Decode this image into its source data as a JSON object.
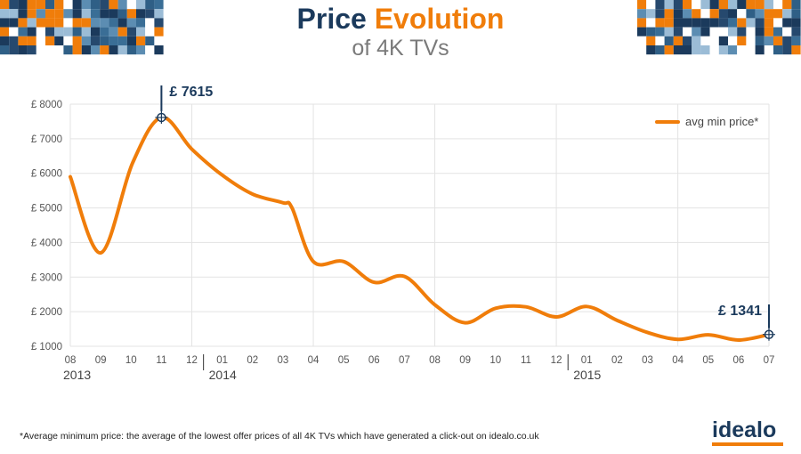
{
  "title": {
    "part1": "Price",
    "part2": "Evolution",
    "subtitle": "of 4K TVs"
  },
  "footnote": "*Average minimum price: the average of the lowest offer prices of all 4K TVs which have generated a click-out on idealo.co.uk",
  "logo": {
    "text": "idealo"
  },
  "colors": {
    "line": "#f07d0a",
    "navy": "#1b3a5c",
    "grid": "#e3e3e3"
  },
  "chart_data": {
    "type": "line",
    "title": "Price Evolution of 4K TVs",
    "ylabel": "",
    "xlabel": "",
    "ylim": [
      1000,
      8000
    ],
    "yticks": [
      "£ 1000",
      "£ 2000",
      "£ 3000",
      "£ 4000",
      "£ 5000",
      "£ 6000",
      "£ 7000",
      "£ 8000"
    ],
    "months": [
      "08",
      "09",
      "10",
      "11",
      "12",
      "01",
      "02",
      "03",
      "04",
      "05",
      "06",
      "07",
      "08",
      "09",
      "10",
      "11",
      "12",
      "01",
      "02",
      "03",
      "04",
      "05",
      "06",
      "07"
    ],
    "years": [
      {
        "label": "2013",
        "start_index": 0
      },
      {
        "label": "2014",
        "start_index": 5
      },
      {
        "label": "2015",
        "start_index": 17
      }
    ],
    "series": [
      {
        "name": "avg min price*",
        "points": [
          [
            0,
            5900
          ],
          [
            1,
            3700
          ],
          [
            2.05,
            6300
          ],
          [
            3,
            7615
          ],
          [
            4,
            6700
          ],
          [
            5,
            5950
          ],
          [
            6,
            5400
          ],
          [
            7,
            5150
          ],
          [
            7.3,
            5000
          ],
          [
            8,
            3450
          ],
          [
            9,
            3450
          ],
          [
            10,
            2850
          ],
          [
            11,
            3020
          ],
          [
            12,
            2200
          ],
          [
            13,
            1680
          ],
          [
            14,
            2100
          ],
          [
            15,
            2140
          ],
          [
            16,
            1850
          ],
          [
            17,
            2150
          ],
          [
            18,
            1750
          ],
          [
            19,
            1400
          ],
          [
            20,
            1200
          ],
          [
            21,
            1330
          ],
          [
            22,
            1180
          ],
          [
            23,
            1341
          ]
        ]
      }
    ],
    "annotations": [
      {
        "index": 3,
        "value": 7615,
        "label": "£ 7615"
      },
      {
        "index": 23,
        "value": 1341,
        "label": "£ 1341"
      }
    ],
    "legend": {
      "position": "top-right",
      "label": "avg min price*"
    }
  }
}
